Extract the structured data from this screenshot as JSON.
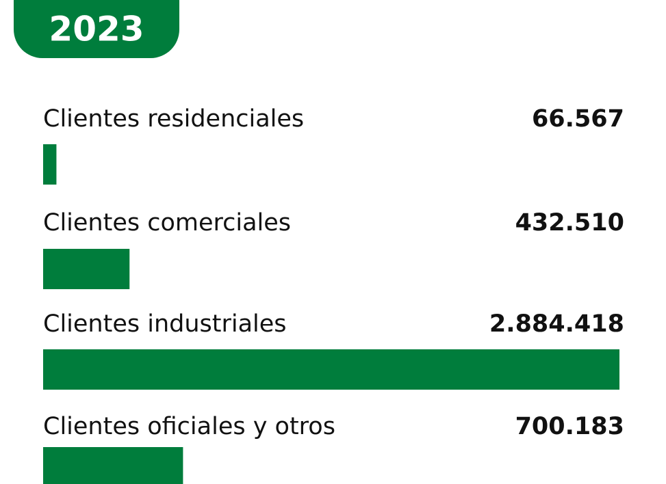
{
  "chart_data": {
    "type": "bar",
    "orientation": "horizontal",
    "title": "2023",
    "categories": [
      "Clientes residenciales",
      "Clientes comerciales",
      "Clientes industriales",
      "Clientes oficiales y otros"
    ],
    "values": [
      66567,
      432510,
      2884418,
      700183
    ],
    "value_labels": [
      "66.567",
      "432.510",
      "2.884.418",
      "700.183"
    ],
    "color": "#007d3c"
  }
}
